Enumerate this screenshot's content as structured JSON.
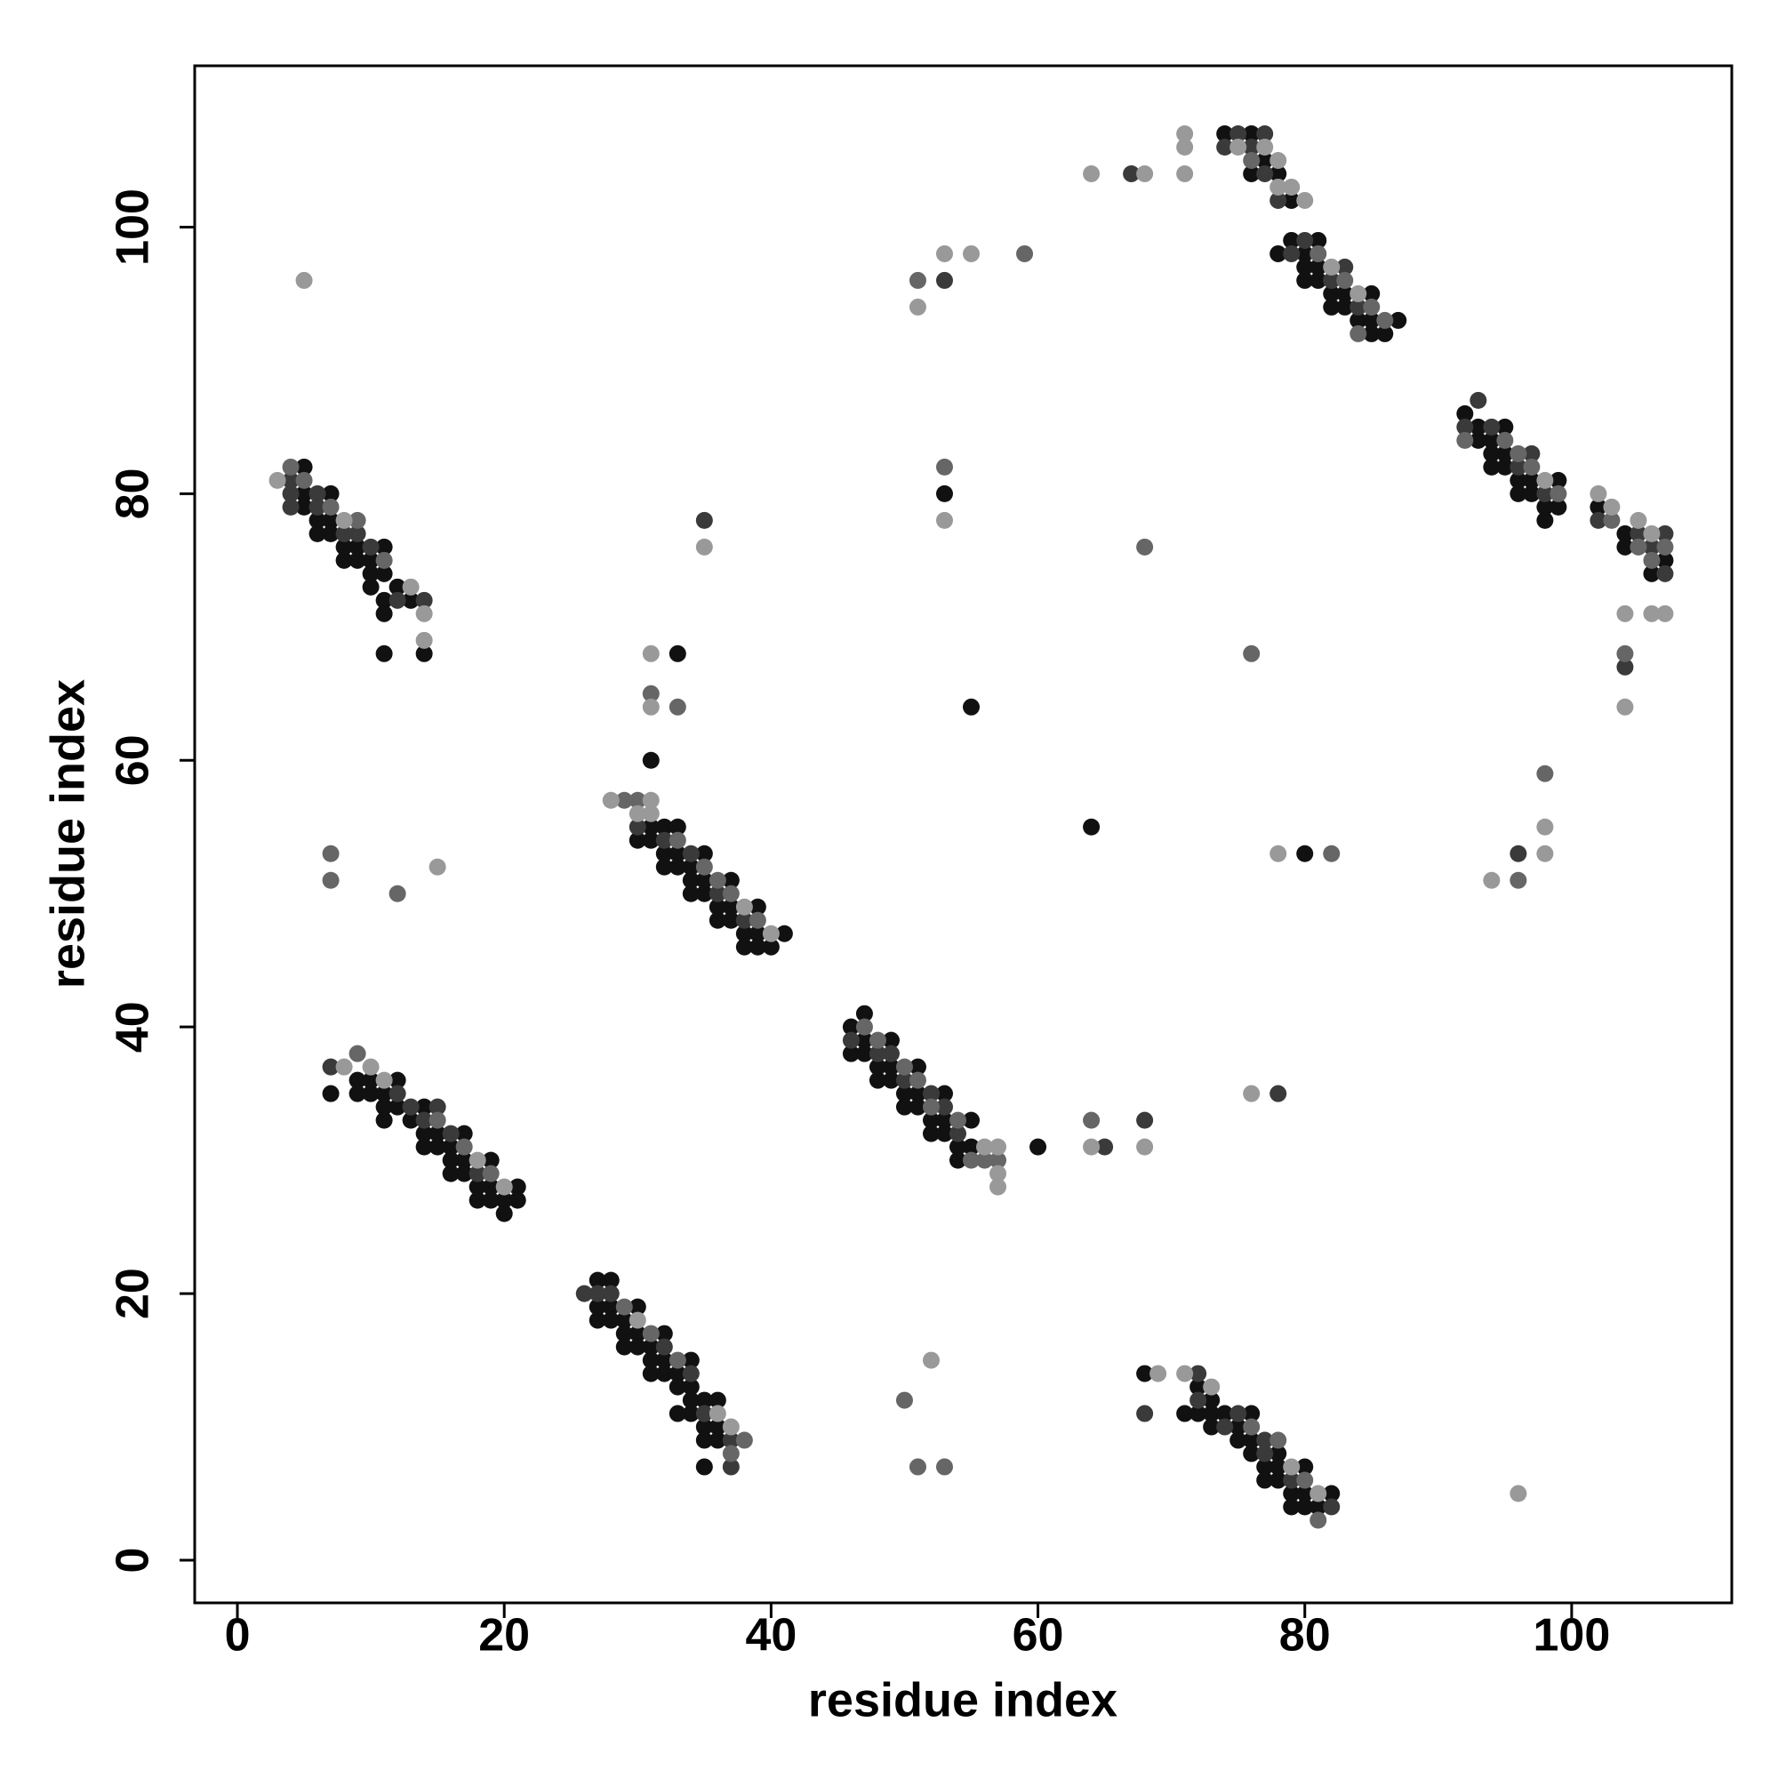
{
  "chart_data": {
    "type": "scatter",
    "xlabel": "residue index",
    "ylabel": "residue index",
    "xlim": [
      -3.2,
      112
    ],
    "ylim": [
      -3.2,
      112.1
    ],
    "xticks": [
      0,
      20,
      40,
      60,
      80,
      100
    ],
    "yticks": [
      0,
      20,
      40,
      60,
      80,
      100
    ],
    "series": [
      {
        "color": "#111111",
        "x": [
          5,
          5,
          5,
          6,
          6,
          7,
          7,
          7,
          8,
          8,
          9,
          9,
          10,
          10,
          10,
          11,
          11,
          11,
          11,
          11,
          12,
          13,
          14,
          7,
          9,
          9,
          10,
          10,
          11,
          11,
          11,
          12,
          12,
          13,
          14,
          14,
          14,
          15,
          15,
          16,
          16,
          16,
          17,
          17,
          17,
          18,
          18,
          19,
          19,
          19,
          20,
          20,
          21,
          21,
          27,
          27,
          27,
          28,
          28,
          28,
          29,
          29,
          29,
          30,
          30,
          30,
          31,
          31,
          31,
          32,
          32,
          32,
          33,
          33,
          33,
          34,
          34,
          34,
          34,
          35,
          35,
          35,
          35,
          36,
          36,
          36,
          30,
          31,
          31,
          32,
          32,
          32,
          33,
          33,
          33,
          34,
          34,
          34,
          35,
          35,
          35,
          36,
          36,
          37,
          37,
          37,
          38,
          38,
          39,
          39,
          39,
          40,
          41,
          33,
          31,
          46,
          46,
          47,
          47,
          47,
          48,
          48,
          49,
          49,
          49,
          50,
          50,
          51,
          51,
          51,
          52,
          52,
          53,
          53,
          53,
          54,
          54,
          55,
          55,
          60,
          68,
          71,
          72,
          72,
          73,
          73,
          73,
          74,
          75,
          75,
          76,
          76,
          76,
          77,
          77,
          78,
          78,
          78,
          79,
          79,
          80,
          80,
          80,
          81,
          82,
          74,
          76,
          76,
          77,
          78,
          79,
          78,
          79,
          80,
          80,
          80,
          81,
          81,
          81,
          82,
          82,
          83,
          83,
          84,
          85,
          85,
          85,
          86,
          87,
          53,
          55,
          64,
          80,
          92,
          93,
          93,
          94,
          94,
          94,
          95,
          95,
          95,
          96,
          96,
          97,
          97,
          98,
          98,
          99,
          99,
          102,
          104,
          104,
          106,
          107
        ],
        "values": [
          82,
          80,
          79,
          78,
          77,
          80,
          78,
          77,
          76,
          75,
          76,
          75,
          75,
          74,
          73,
          76,
          74,
          72,
          71,
          68,
          73,
          72,
          68,
          35,
          36,
          35,
          36,
          35,
          35,
          34,
          33,
          36,
          34,
          33,
          34,
          32,
          31,
          32,
          31,
          31,
          30,
          29,
          32,
          30,
          29,
          28,
          27,
          30,
          28,
          27,
          27,
          26,
          28,
          27,
          21,
          19,
          18,
          21,
          19,
          18,
          18,
          17,
          16,
          19,
          17,
          16,
          16,
          15,
          14,
          17,
          15,
          14,
          14,
          13,
          11,
          15,
          13,
          12,
          11,
          12,
          10,
          9,
          7,
          12,
          10,
          9,
          54,
          55,
          54,
          55,
          53,
          52,
          55,
          53,
          52,
          52,
          51,
          50,
          53,
          51,
          50,
          49,
          48,
          51,
          49,
          48,
          47,
          46,
          49,
          47,
          46,
          46,
          47,
          68,
          60,
          40,
          38,
          41,
          39,
          38,
          37,
          36,
          39,
          37,
          36,
          35,
          34,
          37,
          35,
          34,
          33,
          32,
          35,
          33,
          32,
          31,
          30,
          33,
          31,
          31,
          14,
          11,
          13,
          11,
          12,
          11,
          10,
          11,
          10,
          9,
          11,
          9,
          8,
          7,
          6,
          8,
          7,
          6,
          5,
          4,
          7,
          5,
          4,
          4,
          5,
          107,
          107,
          104,
          105,
          104,
          102,
          98,
          99,
          98,
          97,
          96,
          99,
          97,
          96,
          95,
          94,
          95,
          94,
          93,
          95,
          93,
          92,
          92,
          93,
          80,
          64,
          55,
          53,
          86,
          85,
          84,
          84,
          83,
          82,
          85,
          83,
          82,
          81,
          80,
          81,
          80,
          79,
          78,
          81,
          79,
          79,
          77,
          76,
          74,
          75
        ]
      },
      {
        "color": "#3a3a3a",
        "x": [
          4,
          4,
          4,
          6,
          6,
          8,
          9,
          10,
          12,
          14,
          7,
          12,
          13,
          14,
          15,
          16,
          18,
          26,
          27,
          28,
          32,
          34,
          35,
          37,
          37,
          30,
          32,
          34,
          36,
          38,
          35,
          46,
          48,
          49,
          50,
          52,
          53,
          54,
          65,
          68,
          78,
          68,
          72,
          72,
          74,
          75,
          77,
          77,
          79,
          82,
          74,
          75,
          76,
          77,
          77,
          78,
          79,
          80,
          82,
          83,
          84,
          67,
          53,
          92,
          93,
          94,
          96,
          97,
          98,
          102,
          105,
          106,
          107,
          107,
          104,
          96
        ],
        "values": [
          81,
          80,
          79,
          80,
          79,
          77,
          77,
          76,
          72,
          72,
          37,
          35,
          34,
          33,
          34,
          32,
          29,
          20,
          20,
          20,
          16,
          14,
          11,
          9,
          7,
          55,
          54,
          53,
          50,
          48,
          78,
          39,
          38,
          38,
          36,
          35,
          34,
          32,
          31,
          33,
          35,
          11,
          14,
          12,
          10,
          11,
          9,
          8,
          6,
          4,
          106,
          107,
          106,
          107,
          104,
          102,
          98,
          99,
          96,
          97,
          94,
          104,
          96,
          85,
          87,
          85,
          82,
          83,
          80,
          78,
          77,
          76,
          77,
          74,
          67,
          53
        ]
      },
      {
        "color": "#666666",
        "x": [
          4,
          5,
          7,
          9,
          11,
          9,
          15,
          17,
          19,
          29,
          31,
          33,
          37,
          38,
          29,
          30,
          33,
          35,
          36,
          37,
          39,
          31,
          33,
          7,
          7,
          12,
          47,
          48,
          50,
          51,
          52,
          54,
          55,
          56,
          57,
          64,
          76,
          78,
          80,
          81,
          50,
          51,
          53,
          76,
          81,
          83,
          84,
          85,
          86,
          51,
          59,
          53,
          68,
          76,
          82,
          92,
          95,
          96,
          97,
          99,
          103,
          105,
          106,
          107,
          104,
          98,
          96
        ],
        "values": [
          82,
          81,
          79,
          78,
          75,
          38,
          33,
          31,
          29,
          19,
          17,
          15,
          8,
          9,
          57,
          57,
          54,
          52,
          51,
          50,
          48,
          65,
          64,
          53,
          51,
          50,
          40,
          39,
          37,
          36,
          34,
          33,
          30,
          30,
          30,
          33,
          10,
          9,
          6,
          3,
          12,
          7,
          7,
          105,
          98,
          96,
          92,
          94,
          93,
          96,
          98,
          82,
          76,
          68,
          53,
          84,
          84,
          83,
          82,
          80,
          78,
          76,
          75,
          76,
          68,
          59,
          51
        ]
      },
      {
        "color": "#999999",
        "x": [
          3,
          8,
          13,
          14,
          14,
          8,
          10,
          11,
          18,
          20,
          30,
          36,
          37,
          28,
          30,
          31,
          31,
          38,
          40,
          31,
          31,
          35,
          15,
          5,
          56,
          57,
          57,
          57,
          64,
          68,
          76,
          69,
          71,
          73,
          79,
          81,
          52,
          96,
          71,
          71,
          71,
          75,
          77,
          78,
          78,
          79,
          80,
          82,
          84,
          64,
          68,
          51,
          53,
          55,
          53,
          78,
          98,
          102,
          103,
          105,
          106,
          104,
          104,
          106,
          107,
          98,
          98,
          94
        ],
        "values": [
          81,
          78,
          73,
          71,
          69,
          37,
          37,
          36,
          30,
          28,
          18,
          11,
          10,
          57,
          56,
          57,
          56,
          49,
          47,
          68,
          64,
          76,
          52,
          96,
          31,
          31,
          29,
          28,
          31,
          31,
          35,
          14,
          14,
          13,
          7,
          5,
          15,
          5,
          107,
          106,
          104,
          106,
          106,
          105,
          103,
          103,
          102,
          97,
          95,
          104,
          104,
          94,
          98,
          98,
          78,
          53,
          81,
          80,
          79,
          78,
          77,
          71,
          64,
          71,
          71,
          55,
          53,
          51
        ]
      }
    ]
  }
}
